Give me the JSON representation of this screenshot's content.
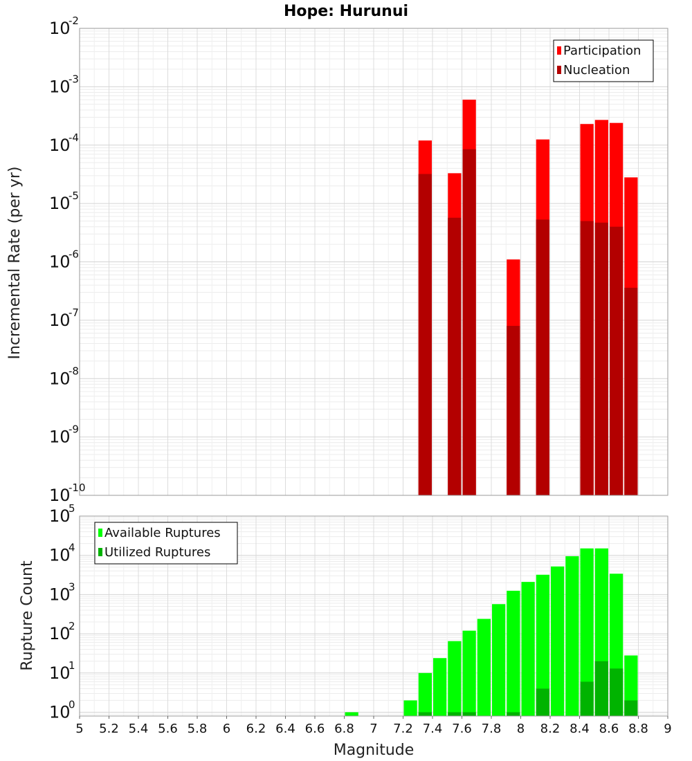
{
  "chart_data": [
    {
      "type": "bar",
      "title": "Hope: Hurunui",
      "ylabel": "Incremental Rate (per yr)",
      "xlabel": "",
      "xlim": [
        5,
        9
      ],
      "ylim": [
        1e-10,
        0.01
      ],
      "y_scale": "log",
      "legend_position": "top-right",
      "grid": true,
      "bar_width": 0.1,
      "series": [
        {
          "name": "Participation",
          "color": "#ff0000",
          "x": [
            7.35,
            7.55,
            7.65,
            7.95,
            8.15,
            8.45,
            8.55,
            8.65,
            8.75
          ],
          "values": [
            0.00012,
            3.3e-05,
            0.0006,
            1.1e-06,
            0.000125,
            0.00023,
            0.00027,
            0.00024,
            2.8e-05
          ]
        },
        {
          "name": "Nucleation",
          "color": "#b30000",
          "x": [
            7.35,
            7.55,
            7.65,
            7.95,
            8.15,
            8.45,
            8.55,
            8.65,
            8.75
          ],
          "values": [
            3.2e-05,
            5.7e-06,
            8.5e-05,
            8e-08,
            5.3e-06,
            5e-06,
            4.7e-06,
            4e-06,
            3.6e-07
          ]
        }
      ]
    },
    {
      "type": "bar",
      "title": "",
      "ylabel": "Rupture Count",
      "xlabel": "Magnitude",
      "xlim": [
        5,
        9
      ],
      "ylim": [
        0.8,
        100000.0
      ],
      "y_scale": "log",
      "legend_position": "top-left",
      "grid": true,
      "bar_width": 0.1,
      "x_ticks": [
        "5",
        "5.2",
        "5.4",
        "5.6",
        "5.8",
        "6",
        "6.2",
        "6.4",
        "6.6",
        "6.8",
        "7",
        "7.2",
        "7.4",
        "7.6",
        "7.8",
        "8",
        "8.2",
        "8.4",
        "8.6",
        "8.8",
        "9"
      ],
      "series": [
        {
          "name": "Available Ruptures",
          "color": "#00ff00",
          "x": [
            6.85,
            7.25,
            7.35,
            7.45,
            7.55,
            7.65,
            7.75,
            7.85,
            7.95,
            8.05,
            8.15,
            8.25,
            8.35,
            8.45,
            8.55,
            8.65,
            8.75
          ],
          "values": [
            1,
            2,
            10,
            24,
            65,
            120,
            240,
            570,
            1250,
            2100,
            3200,
            5200,
            9500,
            15000,
            15000,
            3400,
            28
          ]
        },
        {
          "name": "Utilized Ruptures",
          "color": "#00b300",
          "x": [
            7.35,
            7.55,
            7.65,
            7.95,
            8.15,
            8.45,
            8.55,
            8.65,
            8.75
          ],
          "values": [
            1,
            1,
            1,
            1,
            4,
            6,
            20,
            13,
            2
          ]
        }
      ]
    }
  ]
}
